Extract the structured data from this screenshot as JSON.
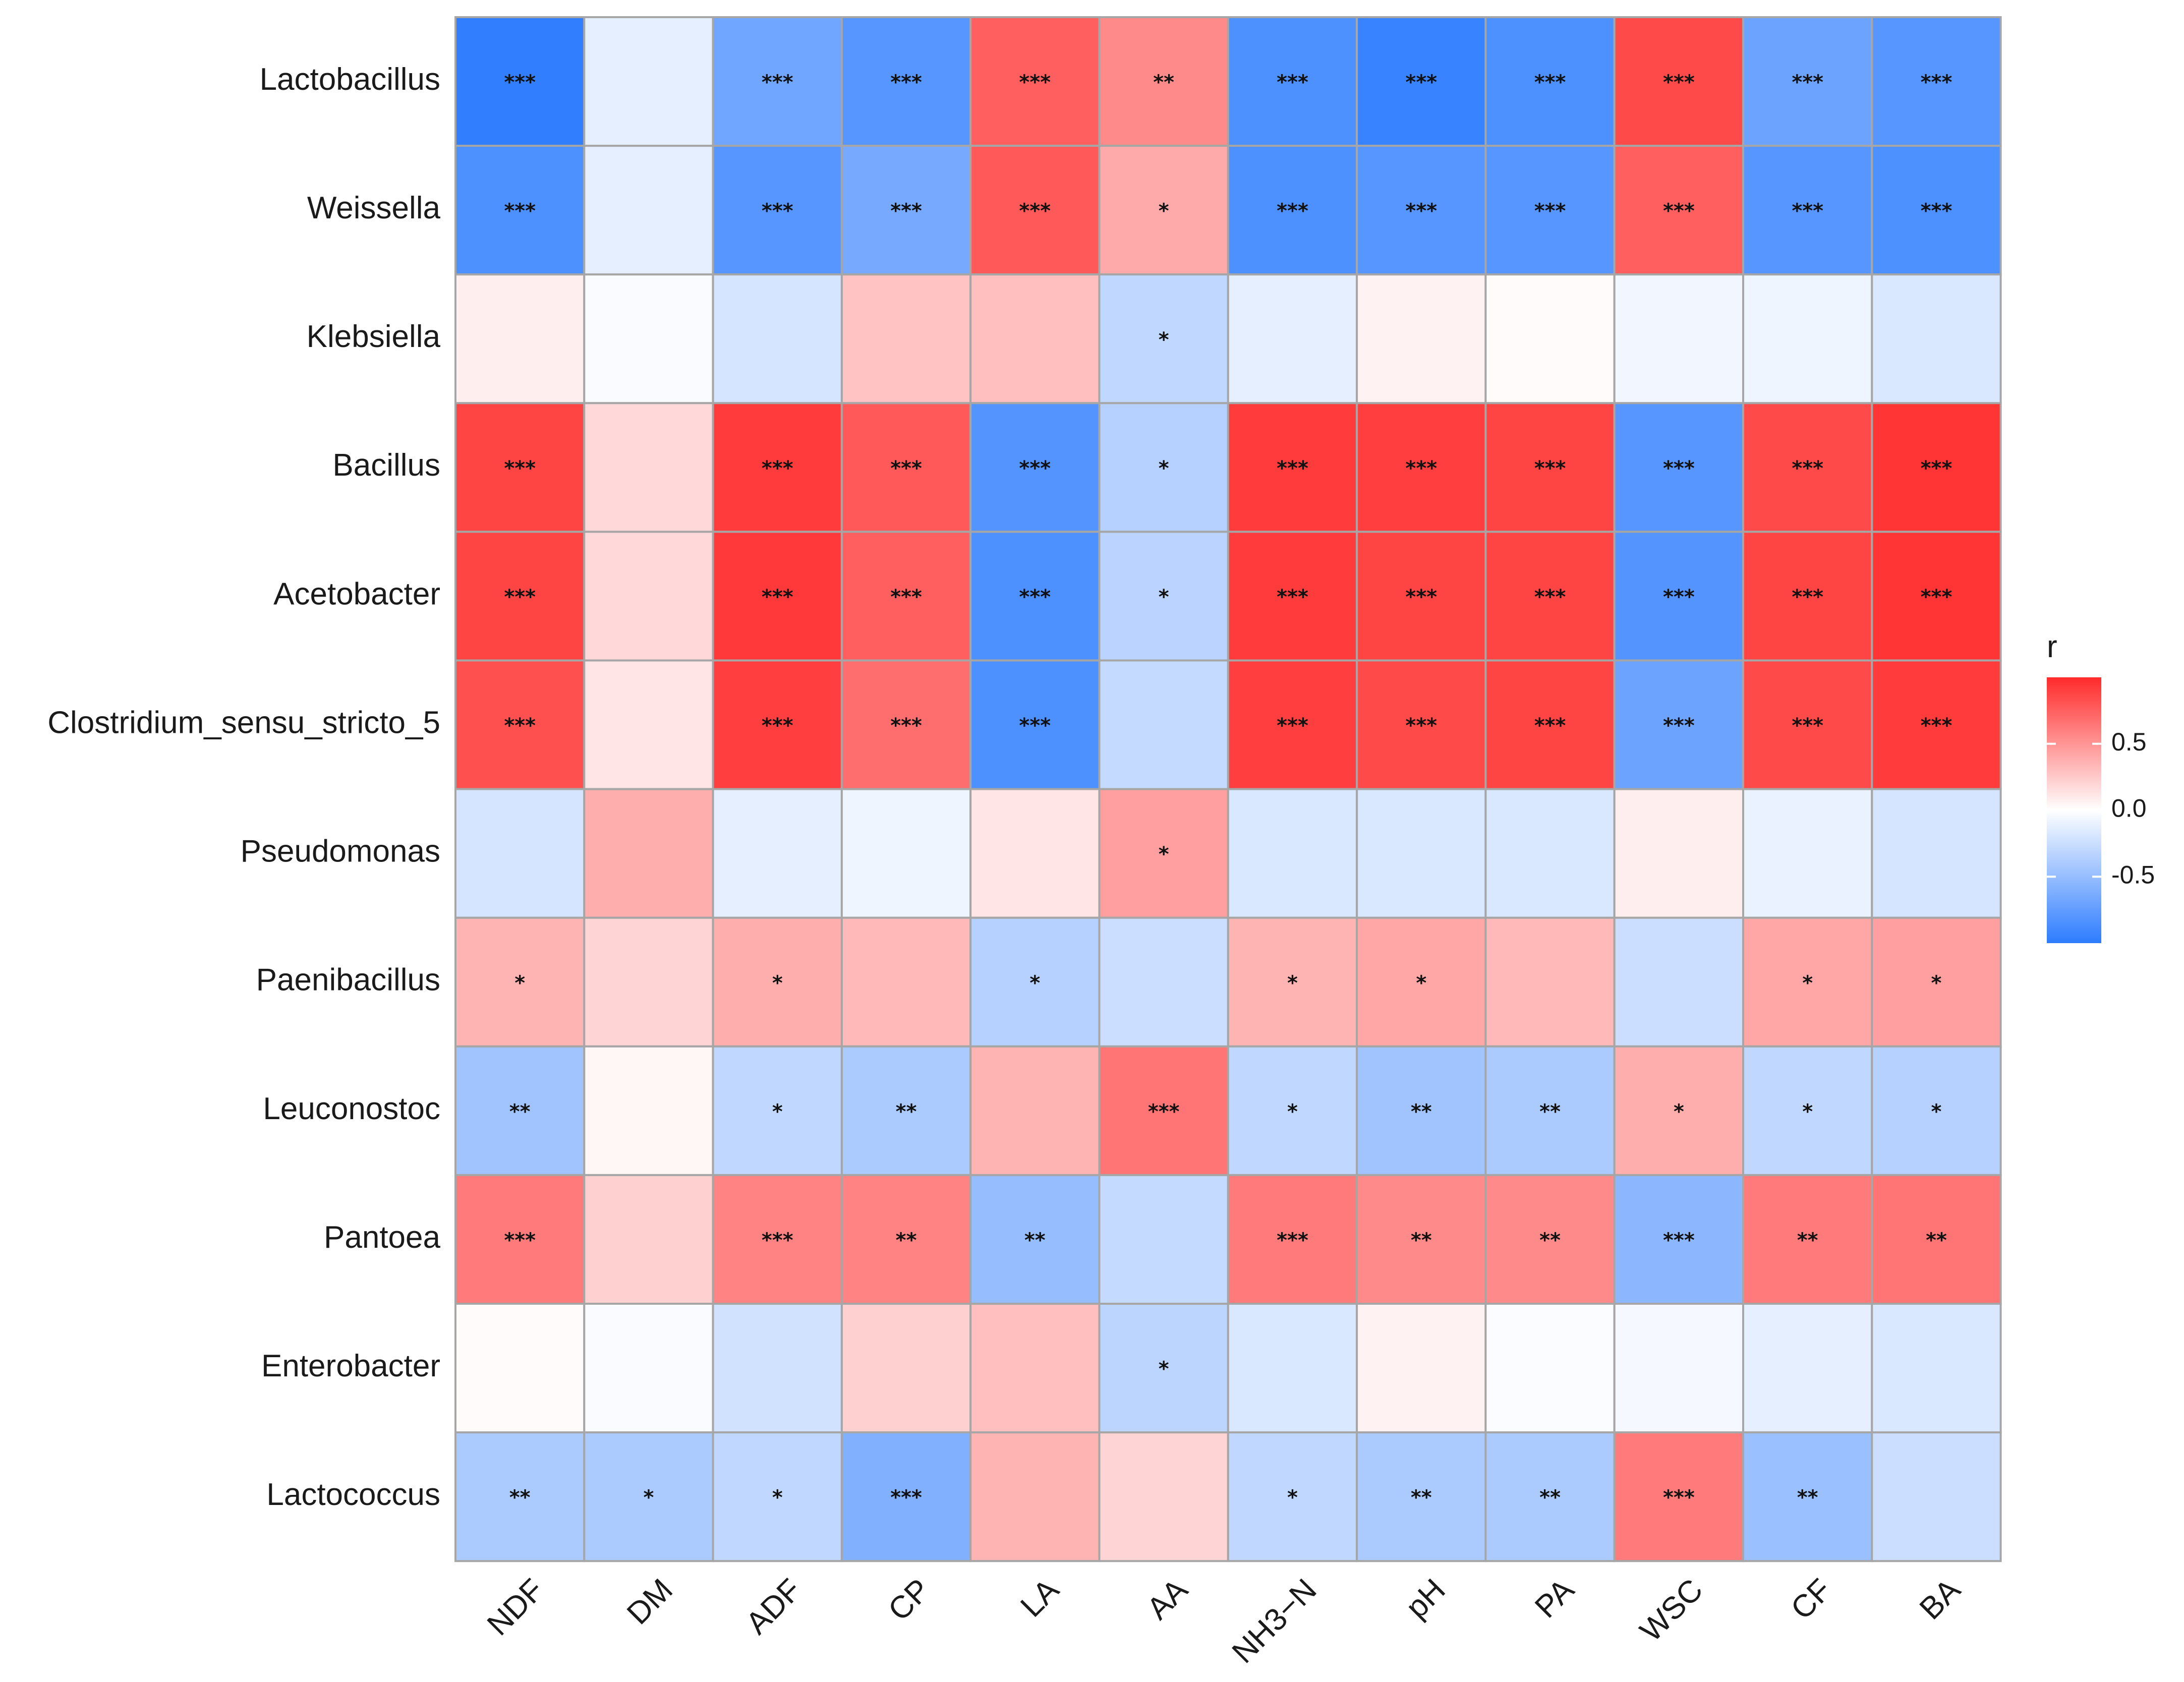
{
  "chart_data": {
    "type": "heatmap",
    "title": "",
    "legend_title": "r",
    "legend_ticks": [
      "0.5",
      "0.0",
      "-0.5"
    ],
    "legend_tick_values": [
      0.5,
      0.0,
      -0.5
    ],
    "value_range": [
      -1,
      1
    ],
    "colors": {
      "low": "#2d7cff",
      "mid": "#ffffff",
      "high": "#ff2a2a",
      "border": "#a6a6a6"
    },
    "rows": [
      "Lactobacillus",
      "Weissella",
      "Klebsiella",
      "Bacillus",
      "Acetobacter",
      "Clostridium_sensu_stricto_5",
      "Pseudomonas",
      "Paenibacillus",
      "Leuconostoc",
      "Pantoea",
      "Enterobacter",
      "Lactococcus"
    ],
    "columns": [
      "NDF",
      "DM",
      "ADF",
      "CP",
      "LA",
      "AA",
      "NH3−N",
      "pH",
      "PA",
      "WSC",
      "CF",
      "BA"
    ],
    "values": [
      [
        -0.98,
        -0.12,
        -0.68,
        -0.8,
        0.75,
        0.55,
        -0.85,
        -0.95,
        -0.85,
        0.85,
        -0.7,
        -0.8
      ],
      [
        -0.85,
        -0.12,
        -0.8,
        -0.65,
        0.78,
        0.4,
        -0.85,
        -0.8,
        -0.8,
        0.75,
        -0.8,
        -0.85
      ],
      [
        0.08,
        -0.03,
        -0.2,
        0.28,
        0.3,
        -0.3,
        -0.12,
        0.06,
        0.02,
        -0.06,
        -0.08,
        -0.18
      ],
      [
        0.88,
        0.18,
        0.92,
        0.78,
        -0.82,
        -0.35,
        0.92,
        0.9,
        0.88,
        -0.8,
        0.85,
        0.95
      ],
      [
        0.88,
        0.18,
        0.93,
        0.75,
        -0.85,
        -0.33,
        0.92,
        0.88,
        0.88,
        -0.82,
        0.88,
        0.95
      ],
      [
        0.82,
        0.12,
        0.9,
        0.68,
        -0.85,
        -0.28,
        0.9,
        0.85,
        0.88,
        -0.7,
        0.85,
        0.92
      ],
      [
        -0.2,
        0.38,
        -0.12,
        -0.08,
        0.12,
        0.45,
        -0.18,
        -0.18,
        -0.18,
        0.08,
        -0.1,
        -0.2
      ],
      [
        0.35,
        0.2,
        0.38,
        0.33,
        -0.35,
        -0.25,
        0.35,
        0.42,
        0.33,
        -0.25,
        0.42,
        0.45
      ],
      [
        -0.45,
        0.04,
        -0.3,
        -0.4,
        0.35,
        0.65,
        -0.3,
        -0.45,
        -0.4,
        0.38,
        -0.3,
        -0.35
      ],
      [
        0.62,
        0.22,
        0.58,
        0.58,
        -0.5,
        -0.28,
        0.62,
        0.55,
        0.55,
        -0.55,
        0.62,
        0.65
      ],
      [
        0.02,
        -0.03,
        -0.22,
        0.22,
        0.3,
        -0.32,
        -0.18,
        0.06,
        -0.02,
        -0.05,
        -0.12,
        -0.18
      ],
      [
        -0.4,
        -0.4,
        -0.3,
        -0.6,
        0.35,
        0.2,
        -0.3,
        -0.4,
        -0.4,
        0.62,
        -0.48,
        -0.25
      ]
    ],
    "significance": [
      [
        "***",
        "",
        "***",
        "***",
        "***",
        "**",
        "***",
        "***",
        "***",
        "***",
        "***",
        "***"
      ],
      [
        "***",
        "",
        "***",
        "***",
        "***",
        "*",
        "***",
        "***",
        "***",
        "***",
        "***",
        "***"
      ],
      [
        "",
        "",
        "",
        "",
        "",
        "*",
        "",
        "",
        "",
        "",
        "",
        ""
      ],
      [
        "***",
        "",
        "***",
        "***",
        "***",
        "*",
        "***",
        "***",
        "***",
        "***",
        "***",
        "***"
      ],
      [
        "***",
        "",
        "***",
        "***",
        "***",
        "*",
        "***",
        "***",
        "***",
        "***",
        "***",
        "***"
      ],
      [
        "***",
        "",
        "***",
        "***",
        "***",
        "",
        "***",
        "***",
        "***",
        "***",
        "***",
        "***"
      ],
      [
        "",
        "",
        "",
        "",
        "",
        "*",
        "",
        "",
        "",
        "",
        "",
        ""
      ],
      [
        "*",
        "",
        "*",
        "",
        "*",
        "",
        "*",
        "*",
        "",
        "",
        "*",
        "*"
      ],
      [
        "**",
        "",
        "*",
        "**",
        "",
        "***",
        "*",
        "**",
        "**",
        "*",
        "*",
        "*"
      ],
      [
        "***",
        "",
        "***",
        "**",
        "**",
        "",
        "***",
        "**",
        "**",
        "***",
        "**",
        "**"
      ],
      [
        "",
        "",
        "",
        "",
        "",
        "*",
        "",
        "",
        "",
        "",
        "",
        ""
      ],
      [
        "**",
        "*",
        "*",
        "***",
        "",
        "",
        "*",
        "**",
        "**",
        "***",
        "**",
        ""
      ]
    ]
  }
}
